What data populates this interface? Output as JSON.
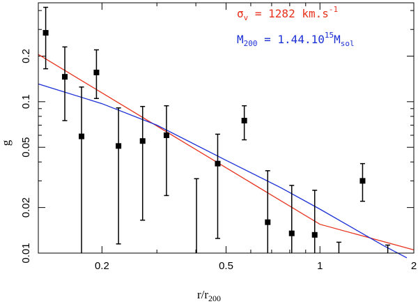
{
  "chart_data": {
    "type": "scatter",
    "x_scale": "log",
    "y_scale": "log",
    "xlim": [
      0.125,
      2.0
    ],
    "ylim": [
      0.01,
      0.45
    ],
    "xlabel": {
      "base": "r/r",
      "sub": "200"
    },
    "ylabel": "g",
    "x_ticks": [
      {
        "value": 0.2,
        "label": "0.2"
      },
      {
        "value": 0.5,
        "label": "0.5"
      },
      {
        "value": 1,
        "label": "1"
      },
      {
        "value": 2,
        "label": "2"
      }
    ],
    "y_ticks": [
      {
        "value": 0.01,
        "label": "0.01"
      },
      {
        "value": 0.02,
        "label": "0.02"
      },
      {
        "value": 0.05,
        "label": "0.05"
      },
      {
        "value": 0.1,
        "label": "0.1"
      },
      {
        "value": 0.2,
        "label": "0.2"
      }
    ],
    "points": [
      {
        "x": 0.132,
        "y": 0.285,
        "lo": 0.165,
        "hi": 0.42
      },
      {
        "x": 0.152,
        "y": 0.146,
        "lo": 0.075,
        "hi": 0.23
      },
      {
        "x": 0.172,
        "y": 0.059,
        "lo": 0.01,
        "hi": 0.125
      },
      {
        "x": 0.192,
        "y": 0.156,
        "lo": 0.105,
        "hi": 0.22
      },
      {
        "x": 0.226,
        "y": 0.051,
        "lo": 0.0115,
        "hi": 0.091
      },
      {
        "x": 0.27,
        "y": 0.055,
        "lo": 0.0165,
        "hi": 0.093
      },
      {
        "x": 0.322,
        "y": 0.06,
        "lo": 0.024,
        "hi": 0.094
      },
      {
        "x": 0.402,
        "y": null,
        "lo": 0.01,
        "hi": 0.031
      },
      {
        "x": 0.47,
        "y": 0.039,
        "lo": 0.0125,
        "hi": 0.061
      },
      {
        "x": 0.572,
        "y": 0.075,
        "lo": 0.056,
        "hi": 0.094
      },
      {
        "x": 0.68,
        "y": 0.016,
        "lo": 0.01,
        "hi": 0.035
      },
      {
        "x": 0.812,
        "y": 0.0135,
        "lo": 0.01,
        "hi": 0.028
      },
      {
        "x": 0.962,
        "y": 0.0132,
        "lo": 0.01,
        "hi": 0.026
      },
      {
        "x": 1.15,
        "y": null,
        "lo": 0.01,
        "hi": 0.0118
      },
      {
        "x": 1.37,
        "y": 0.03,
        "lo": 0.022,
        "hi": 0.039
      },
      {
        "x": 1.65,
        "y": null,
        "lo": 0.01,
        "hi": 0.0113
      }
    ],
    "series": [
      {
        "name": "sigma_v",
        "color": "#e8311c",
        "x": [
          0.125,
          0.25,
          0.5,
          1.0,
          2.0
        ],
        "y": [
          0.205,
          0.0867,
          0.0366,
          0.0155,
          0.0105
        ]
      },
      {
        "name": "M200",
        "color": "#1a2fd6",
        "x": [
          0.125,
          0.2,
          0.3,
          0.5,
          0.75,
          1.0,
          1.3,
          1.6,
          1.9
        ],
        "y": [
          0.131,
          0.097,
          0.07,
          0.041,
          0.027,
          0.0195,
          0.0143,
          0.0112,
          0.0093
        ]
      }
    ],
    "legend": [
      {
        "color": "#e8311c",
        "symbol": "σ",
        "sub": "v",
        "text": " = 1282 km.s",
        "sup": "-1"
      },
      {
        "color": "#1a2fd6",
        "symbol": "M",
        "sub": "200",
        "text": " = 1.44.10",
        "sup": "15",
        "tail": "M",
        "tail_sub": "sol"
      }
    ],
    "legend_position": "top-right"
  }
}
